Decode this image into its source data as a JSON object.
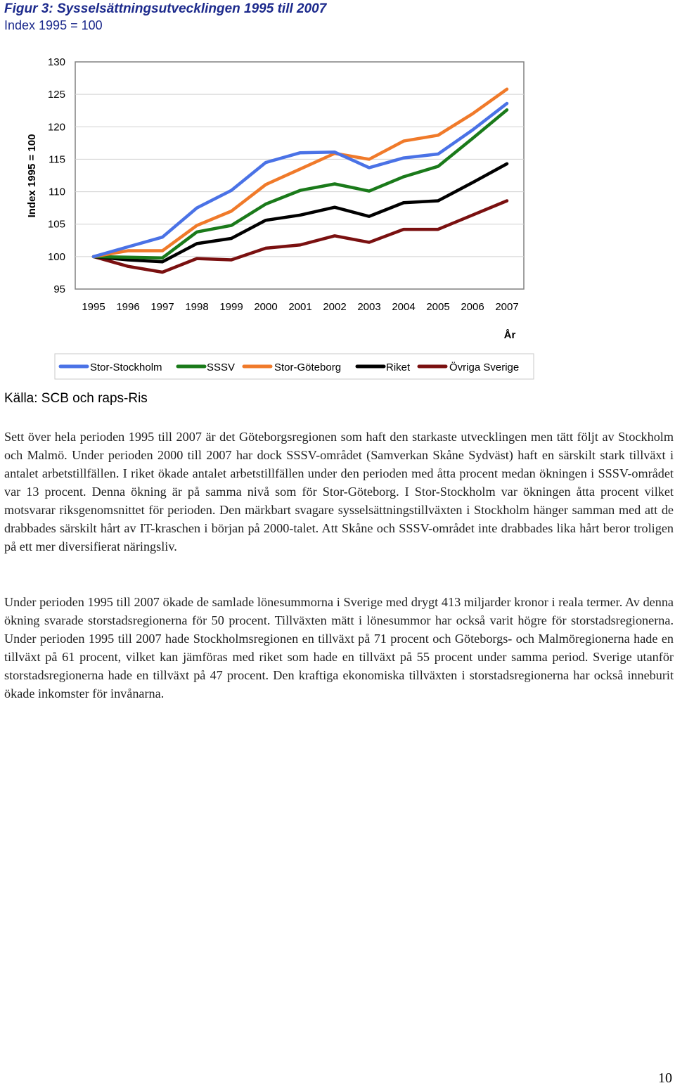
{
  "figure": {
    "title": "Figur 3: Sysselsättningsutvecklingen 1995 till 2007",
    "subtitle": "Index 1995 = 100",
    "source": "Källa: SCB och raps-Ris"
  },
  "chart_data": {
    "type": "line",
    "title": "Figur 3: Sysselsättningsutvecklingen 1995 till 2007",
    "subtitle": "Index 1995 = 100",
    "xlabel": "År",
    "ylabel": "Index 1995 = 100",
    "ylim": [
      95,
      130
    ],
    "yticks": [
      95,
      100,
      105,
      110,
      115,
      120,
      125,
      130
    ],
    "x": [
      "1995",
      "1996",
      "1997",
      "1998",
      "1999",
      "2000",
      "2001",
      "2002",
      "2003",
      "2004",
      "2005",
      "2006",
      "2007"
    ],
    "grid": "horizontal",
    "legend_position": "bottom",
    "series": [
      {
        "name": "Stor-Stockholm",
        "color": "#4a72e6",
        "values": [
          100,
          101.5,
          103,
          107.5,
          110.2,
          114.5,
          116,
          116.1,
          113.7,
          115.2,
          115.8,
          119.5,
          123.6
        ]
      },
      {
        "name": "SSSV",
        "color": "#1a7a1a",
        "values": [
          100,
          99.9,
          99.8,
          103.8,
          104.8,
          108.1,
          110.2,
          111.2,
          110.1,
          112.3,
          113.9,
          118.2,
          122.6
        ]
      },
      {
        "name": "Stor-Göteborg",
        "color": "#f07a2a",
        "values": [
          100,
          100.9,
          100.9,
          104.8,
          107.0,
          111.1,
          113.5,
          115.9,
          115.0,
          117.8,
          118.7,
          122.0,
          125.8
        ]
      },
      {
        "name": "Riket",
        "color": "#000000",
        "values": [
          100,
          99.5,
          99.2,
          102.0,
          102.8,
          105.6,
          106.4,
          107.6,
          106.2,
          108.3,
          108.6,
          111.4,
          114.3
        ]
      },
      {
        "name": "Övriga Sverige",
        "color": "#7a1010",
        "values": [
          100,
          98.5,
          97.6,
          99.7,
          99.5,
          101.3,
          101.8,
          103.2,
          102.2,
          104.2,
          104.2,
          106.4,
          108.6
        ]
      }
    ]
  },
  "body": {
    "para1": "Sett över hela perioden 1995 till 2007 är det Göteborgsregionen som haft den starkaste utvecklingen men tätt följt av Stockholm och Malmö. Under perioden 2000 till 2007 har dock SSSV-området (Samverkan Skåne Sydväst) haft en särskilt stark tillväxt i antalet arbetstillfällen. I riket ökade antalet arbetstillfällen under den perioden med åtta procent medan ökningen i SSSV-området var 13 procent. Denna ökning är på samma nivå som för Stor-Göteborg. I Stor-Stockholm var ökningen åtta procent vilket motsvarar riksgenomsnittet för perioden. Den märkbart svagare sysselsättningstillväxten i Stockholm hänger samman med att de drabbades särskilt hårt av IT-kraschen i början på 2000-talet. Att Skåne och SSSV-området inte drabbades lika hårt beror troligen på ett mer diversifierat näringsliv.",
    "para2": "Under perioden 1995 till 2007 ökade de samlade lönesummorna i Sverige med drygt 413 miljarder kronor i reala termer. Av denna ökning svarade storstadsregionerna för 50 procent. Tillväxten mätt i lönesummor har också varit högre för storstadsregionerna. Under perioden 1995 till 2007 hade Stockholmsregionen en tillväxt på 71 procent och Göteborgs- och Malmöregionerna hade en tillväxt på 61 procent, vilket kan jämföras med riket som hade en tillväxt på 55 procent under samma period. Sverige utanför storstadsregionerna hade en tillväxt på 47 procent. Den kraftiga ekonomiska tillväxten i storstadsregionerna har också inneburit ökade inkomster för invånarna."
  },
  "page_number": "10"
}
